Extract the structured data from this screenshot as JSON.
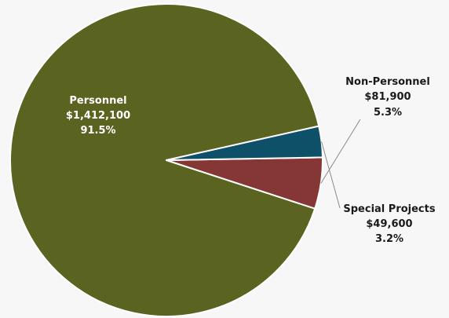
{
  "chart_data": {
    "type": "pie",
    "title": "",
    "slices": [
      {
        "name": "Personnel",
        "amount_label": "$1,412,100",
        "pct_label": "91.5%",
        "value": 1412100,
        "percent": 91.5,
        "color": "#5b6321",
        "label_color": "#ffffff"
      },
      {
        "name": "Non-Personnel",
        "amount_label": "$81,900",
        "pct_label": "5.3%",
        "value": 81900,
        "percent": 5.3,
        "color": "#853735",
        "label_color": "#1a1a1a"
      },
      {
        "name": "Special Projects",
        "amount_label": "$49,600",
        "pct_label": "3.2%",
        "value": 49600,
        "percent": 3.2,
        "color": "#0d5068",
        "label_color": "#1a1a1a"
      }
    ],
    "slice_border_color": "#ffffff",
    "leader_line_color": "#8a8a8a",
    "legend": "none"
  }
}
